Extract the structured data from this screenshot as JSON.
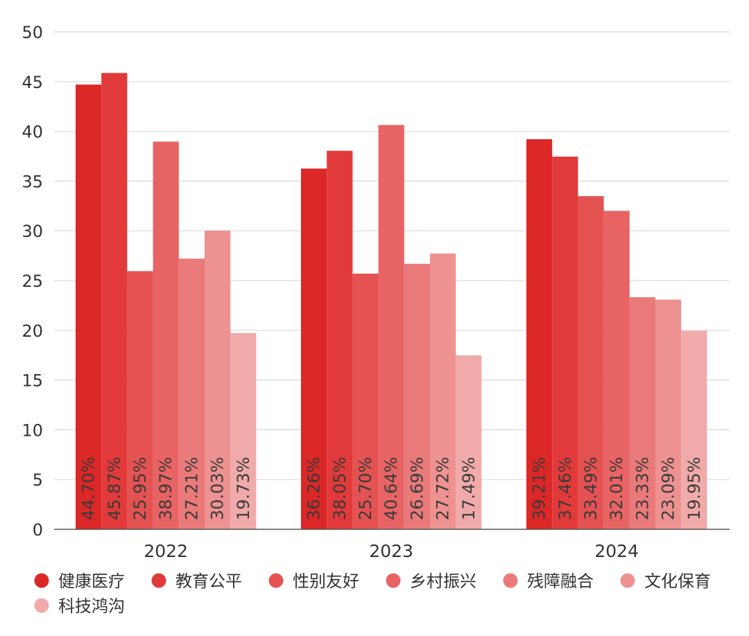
{
  "chart_data": {
    "type": "bar",
    "categories": [
      "2022",
      "2023",
      "2024"
    ],
    "ylim": [
      0,
      50
    ],
    "yticks": [
      0,
      5,
      10,
      15,
      20,
      25,
      30,
      35,
      40,
      45,
      50
    ],
    "grid": true,
    "legend_position": "bottom",
    "series": [
      {
        "name": "健康医疗",
        "color": "#dc2727",
        "values": [
          44.7,
          36.26,
          39.21
        ],
        "labels": [
          "44.70%",
          "36.26%",
          "39.21%"
        ]
      },
      {
        "name": "教育公平",
        "color": "#e23a3a",
        "values": [
          45.87,
          38.05,
          37.46
        ],
        "labels": [
          "45.87%",
          "38.05%",
          "37.46%"
        ]
      },
      {
        "name": "性别友好",
        "color": "#e55252",
        "values": [
          25.95,
          25.7,
          33.49
        ],
        "labels": [
          "25.95%",
          "25.70%",
          "33.49%"
        ]
      },
      {
        "name": "乡村振兴",
        "color": "#e86464",
        "values": [
          38.97,
          40.64,
          32.01
        ],
        "labels": [
          "38.97%",
          "40.64%",
          "32.01%"
        ]
      },
      {
        "name": "残障融合",
        "color": "#ea7a7a",
        "values": [
          27.21,
          26.69,
          23.33
        ],
        "labels": [
          "27.21%",
          "26.69%",
          "23.33%"
        ]
      },
      {
        "name": "文化保育",
        "color": "#ee9191",
        "values": [
          30.03,
          27.72,
          23.09
        ],
        "labels": [
          "30.03%",
          "27.72%",
          "23.09%"
        ]
      },
      {
        "name": "科技鸿沟",
        "color": "#f1aaaa",
        "values": [
          19.73,
          17.49,
          19.95
        ],
        "labels": [
          "19.73%",
          "17.49%",
          "19.95%"
        ]
      }
    ]
  }
}
